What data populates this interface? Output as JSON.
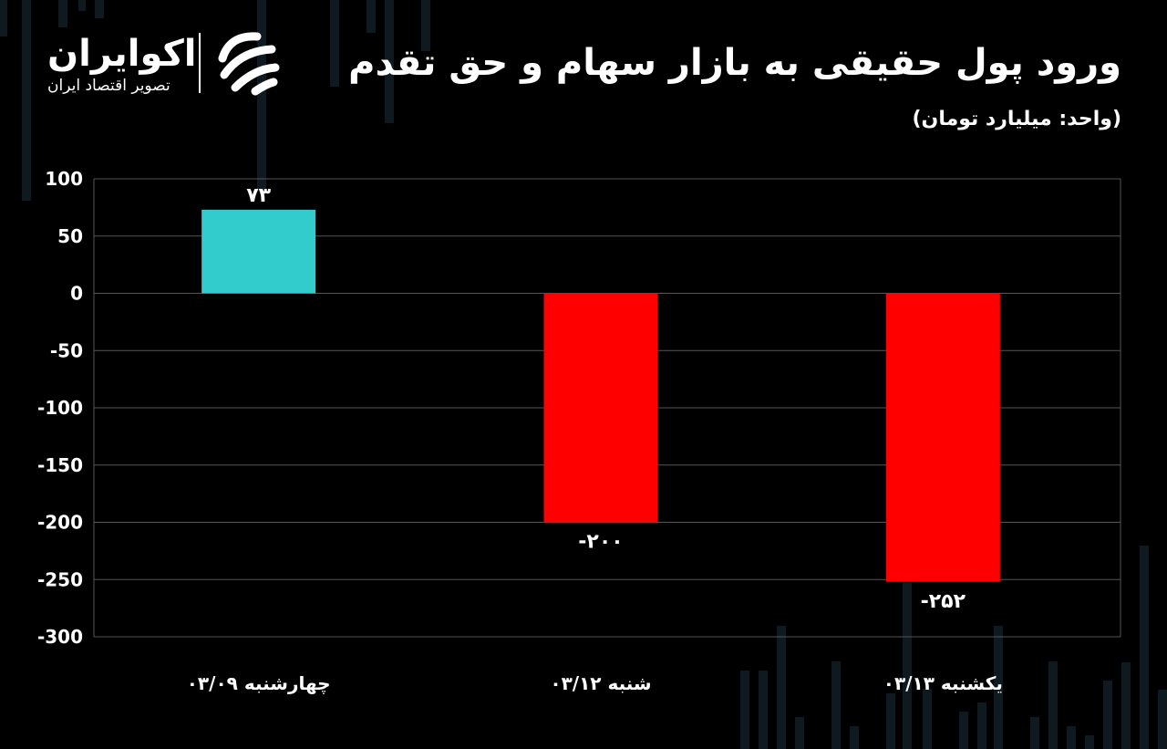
{
  "header": {
    "title": "ورود پول حقیقی به بازار سهام و حق تقدم",
    "subtitle": "(واحد: میلیارد تومان)"
  },
  "logo": {
    "name": "اکوایران",
    "tagline": "تصویر اقتصاد ایران",
    "icon": "ecoiran-logo-mark"
  },
  "colors": {
    "background": "#000000",
    "positive": "#33cccc",
    "negative": "#ff0000",
    "grid": "#555555",
    "text": "#ffffff"
  },
  "chart_data": {
    "type": "bar",
    "title": "ورود پول حقیقی به بازار سهام و حق تقدم",
    "subtitle": "(واحد: میلیارد تومان)",
    "categories": [
      "چهارشنبه ۰۳/۰۹",
      "شنبه ۰۳/۱۲",
      "یکشنبه ۰۳/۱۳"
    ],
    "values": [
      73,
      -200,
      -252
    ],
    "data_labels": [
      "۷۳",
      "-۲۰۰",
      "-۲۵۲"
    ],
    "ylim": [
      -300,
      100
    ],
    "yticks": [
      100,
      50,
      0,
      -50,
      -100,
      -150,
      -200,
      -250,
      -300
    ],
    "ytick_labels": [
      "100",
      "50",
      "0",
      "-50",
      "-100",
      "-150",
      "-200",
      "-250",
      "-300"
    ],
    "grid": true,
    "legend": "none"
  }
}
